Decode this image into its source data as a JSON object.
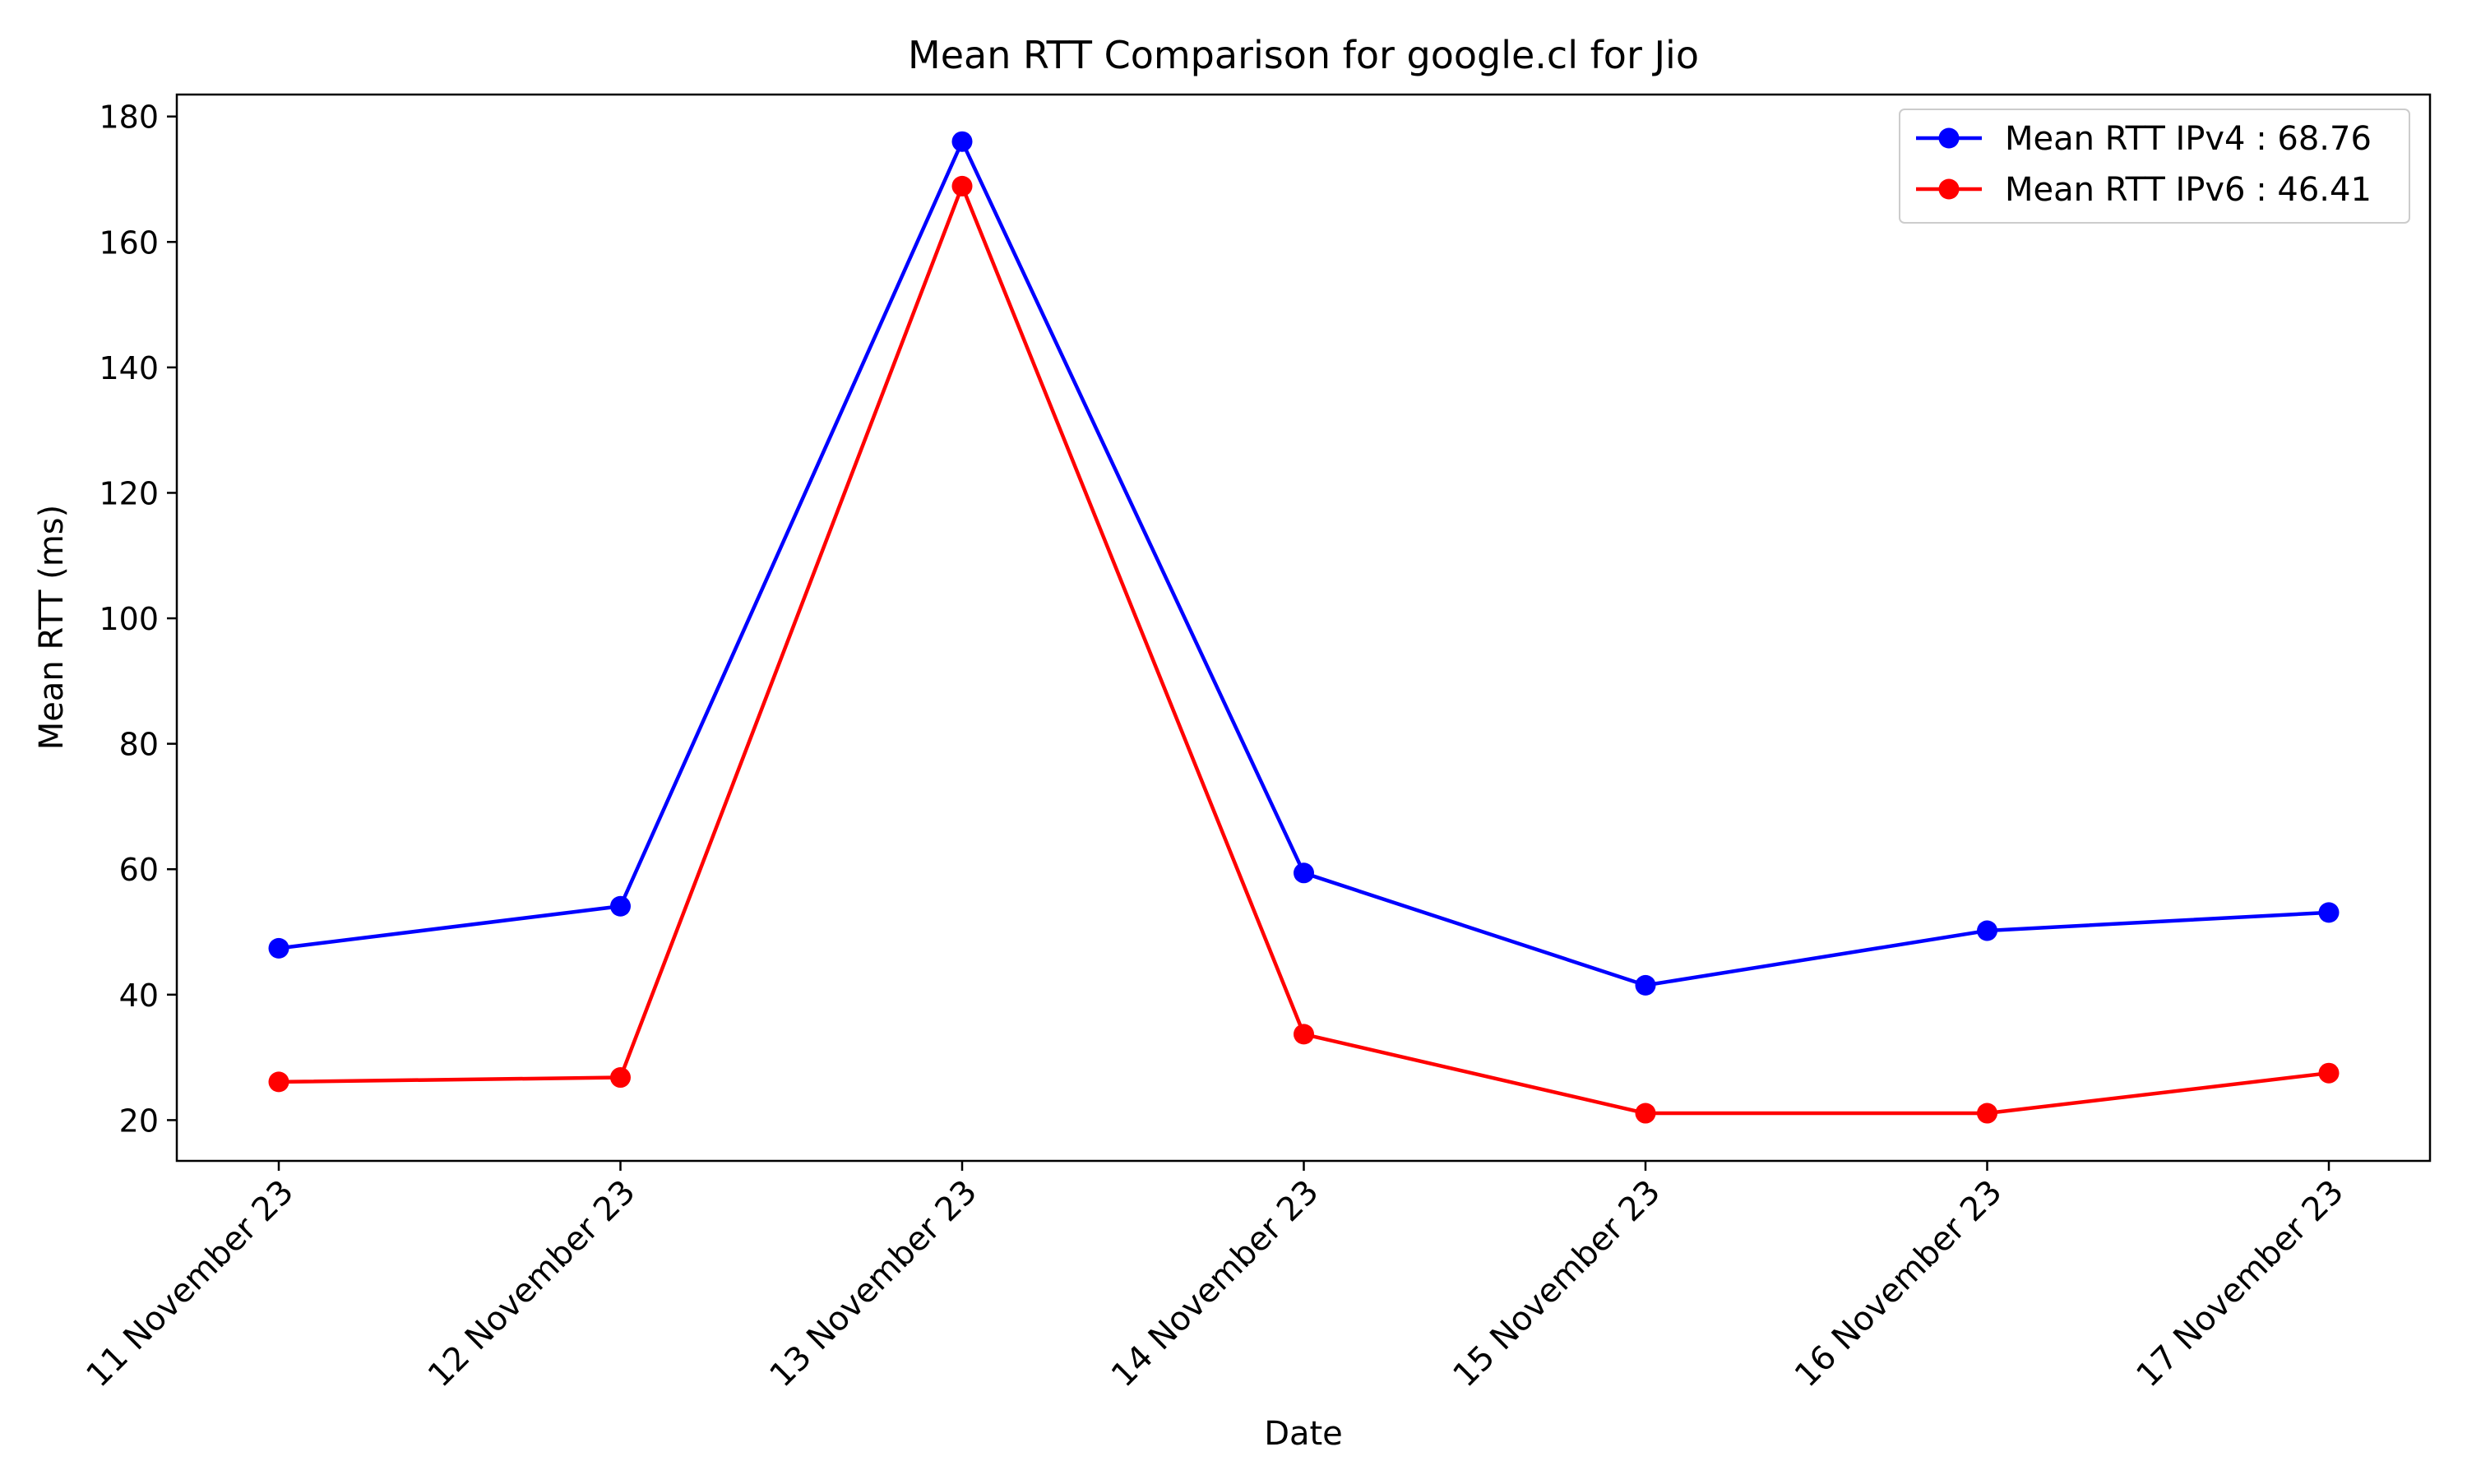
{
  "chart_data": {
    "type": "line",
    "title": "Mean RTT Comparison for google.cl for Jio",
    "xlabel": "Date",
    "ylabel": "Mean RTT (ms)",
    "categories": [
      "11 November 23",
      "12 November 23",
      "13 November 23",
      "14 November 23",
      "15 November 23",
      "16 November 23",
      "17 November 23"
    ],
    "ylim": [
      13.5,
      183.5
    ],
    "yticks": [
      20,
      40,
      60,
      80,
      100,
      120,
      140,
      160,
      180
    ],
    "grid": false,
    "legend_position": "top-right",
    "series": [
      {
        "name": "Mean RTT IPv4 : 68.76",
        "color": "#0000ff",
        "marker": "circle",
        "values": [
          47.4,
          54.1,
          176.0,
          59.4,
          41.5,
          50.2,
          53.1
        ]
      },
      {
        "name": "Mean RTT IPv6 : 46.41",
        "color": "#ff0000",
        "marker": "circle",
        "values": [
          26.1,
          26.8,
          168.9,
          33.7,
          21.1,
          21.1,
          27.5
        ]
      }
    ]
  }
}
